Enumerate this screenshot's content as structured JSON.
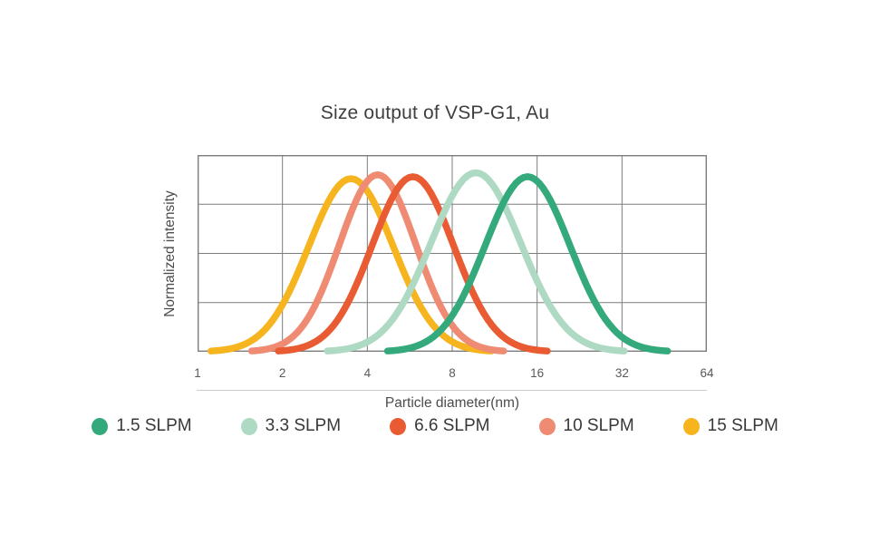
{
  "figure": {
    "background": "#ffffff"
  },
  "chart_data": {
    "type": "line",
    "title": "Size output of VSP-G1, Au",
    "xlabel": "Particle diameter(nm)",
    "ylabel": "Normalized intensity",
    "x_scale": "log2",
    "x_range_nm": [
      1,
      64
    ],
    "x_ticks": [
      1,
      2,
      4,
      8,
      16,
      32,
      64
    ],
    "y_axis_ticks_shown": false,
    "y_gridline_rows": 4,
    "grid": true,
    "legend_position": "bottom",
    "curve_model": "gaussian_in_log2_diameter",
    "series": [
      {
        "name": "1.5 SLPM",
        "color": "#34a97c",
        "peak_diameter_nm": 14.8,
        "sigma_octaves": 0.5,
        "peak_normalized_intensity": 0.89
      },
      {
        "name": "3.3 SLPM",
        "color": "#aed9c2",
        "peak_diameter_nm": 9.7,
        "sigma_octaves": 0.53,
        "peak_normalized_intensity": 0.91
      },
      {
        "name": "6.6 SLPM",
        "color": "#e95b32",
        "peak_diameter_nm": 5.8,
        "sigma_octaves": 0.48,
        "peak_normalized_intensity": 0.89
      },
      {
        "name": "10 SLPM",
        "color": "#ef8b72",
        "peak_diameter_nm": 4.35,
        "sigma_octaves": 0.45,
        "peak_normalized_intensity": 0.9
      },
      {
        "name": "15 SLPM",
        "color": "#f6b41f",
        "peak_diameter_nm": 3.5,
        "sigma_octaves": 0.5,
        "peak_normalized_intensity": 0.88
      }
    ]
  },
  "colors": {
    "grid": "#7d7d7d",
    "separator": "#cccccc",
    "title_text": "#3e3e3e",
    "axis_text": "#4c4c4c",
    "tick_text": "#595959",
    "legend_text": "#383838"
  }
}
